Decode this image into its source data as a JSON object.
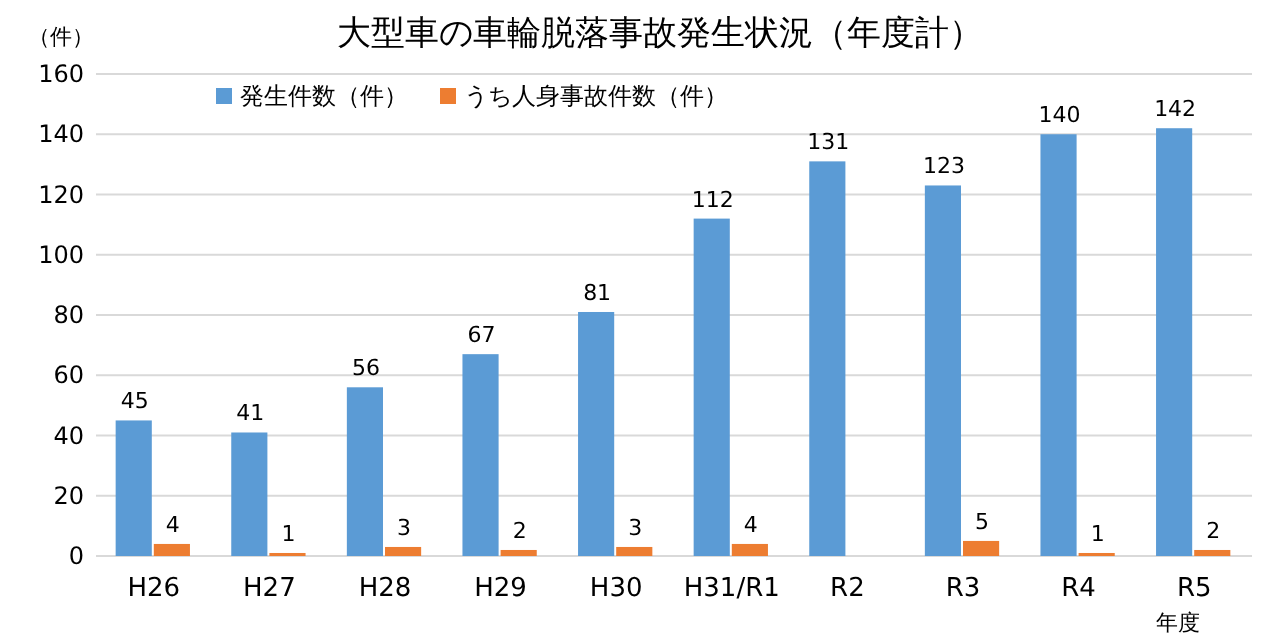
{
  "chart_data": {
    "type": "bar",
    "title": "大型車の車輪脱落事故発生状況（年度計）",
    "ylabel": "（件）",
    "xlabel": "年度",
    "categories": [
      "H26",
      "H27",
      "H28",
      "H29",
      "H30",
      "H31/R1",
      "R2",
      "R3",
      "R4",
      "R5"
    ],
    "series": [
      {
        "name": "発生件数（件）",
        "color": "#5b9bd5",
        "values": [
          45,
          41,
          56,
          67,
          81,
          112,
          131,
          123,
          140,
          142
        ]
      },
      {
        "name": "うち人身事故件数（件）",
        "color": "#ed7d31",
        "values": [
          4,
          1,
          3,
          2,
          3,
          4,
          null,
          5,
          1,
          2
        ]
      }
    ],
    "ylim": [
      0,
      160
    ],
    "yticks": [
      0,
      20,
      40,
      60,
      80,
      100,
      120,
      140,
      160
    ],
    "grid": "y",
    "legend": "top left",
    "data_labels": true
  }
}
